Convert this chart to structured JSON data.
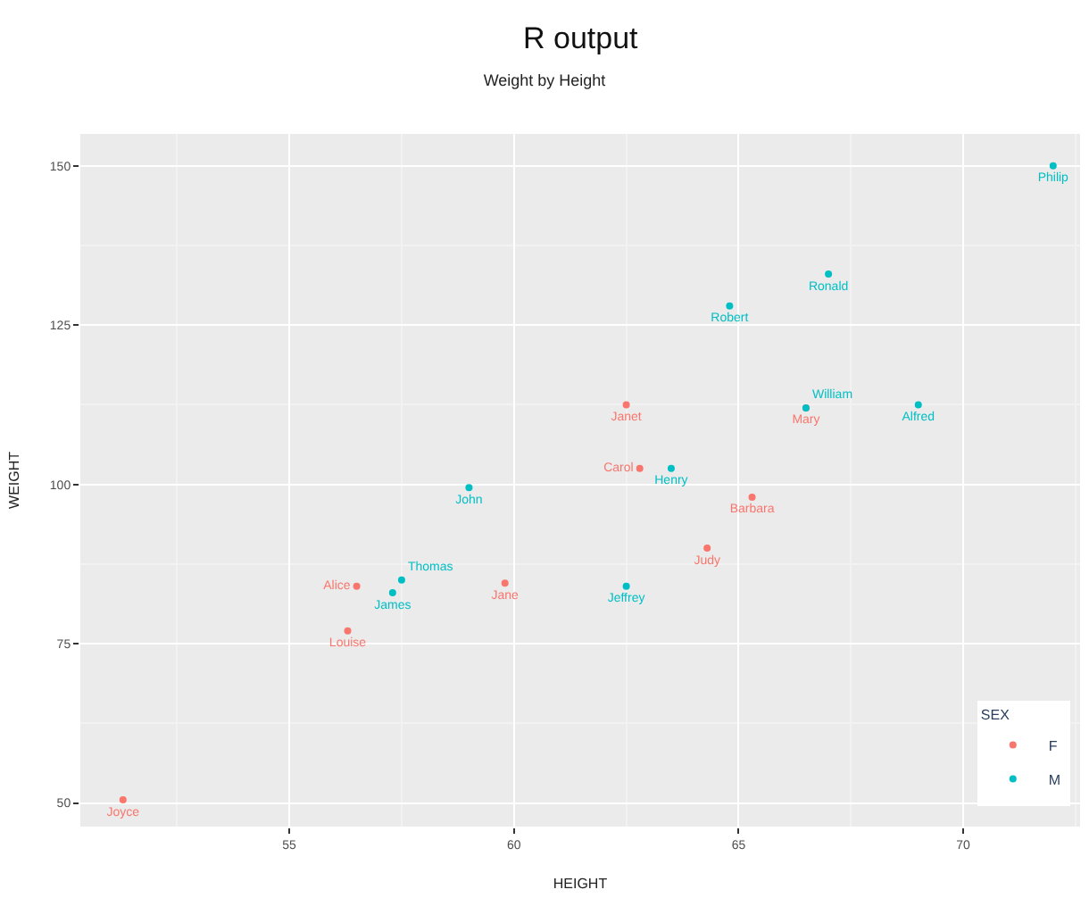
{
  "chart_data": {
    "type": "scatter",
    "title": "Weight by Height",
    "xlabel": "HEIGHT",
    "ylabel": "WEIGHT",
    "legend_title": "SEX",
    "annotations": [
      "R output"
    ],
    "xlim": [
      50.35,
      72.6
    ],
    "ylim": [
      46.3,
      155
    ],
    "xticks": [
      55,
      60,
      65,
      70
    ],
    "yticks": [
      50,
      75,
      100,
      125,
      150
    ],
    "grid": true,
    "legend": "bottom right",
    "marker": "circle",
    "series": [
      {
        "name": "F",
        "color": "#f8766d",
        "x": [
          56.5,
          65.3,
          62.8,
          59.8,
          62.5,
          51.3,
          64.3,
          56.3,
          66.5
        ],
        "values": [
          84.0,
          98.0,
          102.5,
          84.5,
          112.5,
          50.5,
          90.0,
          77.0,
          112.0
        ],
        "value_labels": [
          "Alice",
          "Barbara",
          "Carol",
          "Jane",
          "Janet",
          "Joyce",
          "Judy",
          "Louise",
          "Mary"
        ]
      },
      {
        "name": "M",
        "color": "#00bfc4",
        "x": [
          69.0,
          63.5,
          57.3,
          62.5,
          59.0,
          72.0,
          64.8,
          67.0,
          57.5,
          66.5
        ],
        "values": [
          112.5,
          102.5,
          83.0,
          84.0,
          99.5,
          150.0,
          128.0,
          133.0,
          85.0,
          112.0
        ],
        "value_labels": [
          "Alfred",
          "Henry",
          "James",
          "Jeffrey",
          "John",
          "Philip",
          "Robert",
          "Ronald",
          "Thomas",
          "William"
        ]
      }
    ]
  }
}
